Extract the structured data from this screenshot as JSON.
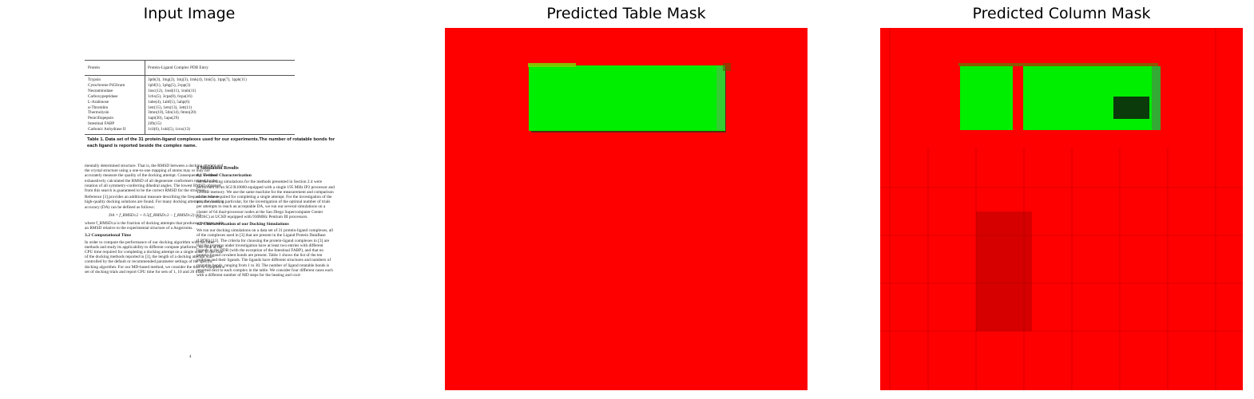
{
  "panels": {
    "input_title": "Input Image",
    "table_title": "Predicted Table Mask",
    "column_title": "Predicted Column Mask"
  },
  "colors": {
    "mask_background": "#ff0000",
    "mask_foreground": "#00ff00"
  },
  "document": {
    "table_header": {
      "col1": "Protein",
      "col2": "Protein-Ligand Complex PDB Entry"
    },
    "table_rows": [
      {
        "protein": "Trypsin",
        "entry": "3ptb(3), 1tng(2), 1tnj(3), 1tnk(4), 1tni(5), 1tpp(7), 1pph(11)"
      },
      {
        "protein": "Cytochrome P450cam",
        "entry": "1phf(1), 1phg(5), 2cpp(3)"
      },
      {
        "protein": "Neuraminidase",
        "entry": "1nsc(12), 1nsd(11), 1nnb(11)"
      },
      {
        "protein": "Carboxypeptidase",
        "entry": "1cbx(5), 3cpa(8), 6cpa(16)"
      },
      {
        "protein": "L-Arabinose",
        "entry": "1abe(4), 1abf(5), 5abp(6)"
      },
      {
        "protein": "α-Thrombin",
        "entry": "1etr(15), 1ets(13), 1ett(11)"
      },
      {
        "protein": "Thermolysin",
        "entry": "3tmn(10), 5tln(14), 6tmn(20)"
      },
      {
        "protein": "Penicillopepsin",
        "entry": "1apt(30), 1apu(29)"
      },
      {
        "protein": "Intestinal FABP",
        "entry": "2ifb(15)"
      },
      {
        "protein": "Carbonic Anhydrase II",
        "entry": "1cil(6), 1okl(5), 1cnx(13)"
      }
    ],
    "caption": "Table 1. Data set of the 31 protein-ligand complexes used for our experiments.The number of rotatable bonds for each ligand is reported beside the complex name.",
    "left_col": {
      "p1": "mentally determined structure. That is, the RMSD between a docking attempt and the crystal structure using a one-to-one mapping of atoms may or may not accurately measure the quality of the docking attempt. Consequently, we have exhaustively calculated the RMSD of all degenerate conformers related by the rotation of all symmetry-conferring dihedral angles. The lowest RMSD obtained from this search is guaranteed to be the correct RMSD for the structure.",
      "p2": "Reference [3] provides an additional measure describing the frequencies where high-quality docking solutions are found. For many docking attempts, the docking accuracy (DA) can be defined as follows:",
      "formula": "DA = f_RMSD≤2 + 0.5(f_RMSD≤3 − f_RMSD≤2)     (1)",
      "p3": "where f_RMSD≤a is the fraction of docking attempts that produce structures with an RMSD relative to the experimental structure of a Angstroms.",
      "h": "3.2   Computational Time",
      "p4": "In order to compare the performance of our docking algorithm with the other methods and study its applicability to different compute platforms, we look at the CPU time required for completing a docking attempt on a single node. In the case of the docking methods reported in [3], the length of a docking attempt was controlled by the default or recommended parameter settings of the specific docking algorithm. For our MD-based method, we consider the time to complete a set of docking trials and report CPU time for sets of 1, 10 and 20 trials."
    },
    "right_col": {
      "h1": "4   Simulation Results",
      "h2": "4.1   Testbed Characterization",
      "p1": "All the docking simulations for the methods presented in Section 2.4 were performed on an SGI R10000 equipped with a single 195 MHz IP2 processor and 128MB memory. We use the same machine for the measurement and comparison of the time required for completing a single attempt. For the investigation of the accuracy and, in particular, for the investigation of the optimal number of trials per attempts to reach an acceptable DA, we run our several simulations on a cluster of 64 dual-processor nodes at the San Diego Supercomputer Center (SDSC) at UCSD equipped with 930MHz Pentium III processors.",
      "h3": "4.2   Characterization of our Docking Simulations",
      "p2": "We run our docking simulations on a data set of 31 protein-ligand complexes, all of the complexes used in [3] that are present in the Ligand Protein DataBase (LPDB) [13]. The criteria for choosing the protein-ligand complexes in [3] are that the proteins under investigation have at least two entries with different ligands in the PDB (with the exception of the Intestinal FABP), and that no protein-ligand covalent bonds are present. Table 1 shows the list of the ten proteins and their ligands. The ligands have different structures and numbers of rotatable bonds, ranging from 1 to 30. The number of ligand rotatable bonds is reported next to each complex in the table. We consider four different cases each with a different number of MD steps for the heating and cool-"
    },
    "page_number": "4"
  }
}
